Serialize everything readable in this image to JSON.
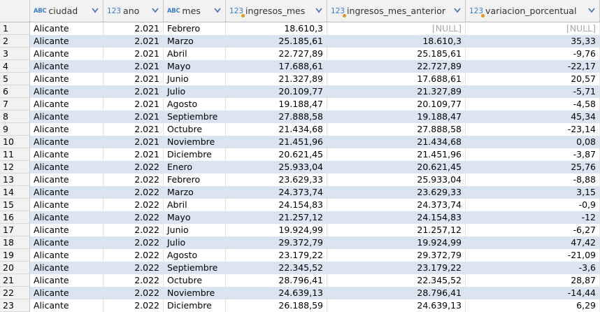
{
  "columns": [
    {
      "name": "ciudad",
      "type": "ABC"
    },
    {
      "name": "ano",
      "type": "123"
    },
    {
      "name": "mes",
      "type": "ABC"
    },
    {
      "name": "ingresos_mes",
      "type": "123"
    },
    {
      "name": "ingresos_mes_anterior",
      "type": "123"
    },
    {
      "name": "variacion_porcentual",
      "type": "123"
    }
  ],
  "rows": [
    {
      "n": "1",
      "ciudad": "Alicante",
      "ano": "2.021",
      "mes": "Febrero",
      "ingresos": "18.610,3",
      "anterior": "[NULL]",
      "variacion": "[NULL]"
    },
    {
      "n": "2",
      "ciudad": "Alicante",
      "ano": "2.021",
      "mes": "Marzo",
      "ingresos": "25.185,61",
      "anterior": "18.610,3",
      "variacion": "35,33"
    },
    {
      "n": "3",
      "ciudad": "Alicante",
      "ano": "2.021",
      "mes": "Abril",
      "ingresos": "22.727,89",
      "anterior": "25.185,61",
      "variacion": "-9,76"
    },
    {
      "n": "4",
      "ciudad": "Alicante",
      "ano": "2.021",
      "mes": "Mayo",
      "ingresos": "17.688,61",
      "anterior": "22.727,89",
      "variacion": "-22,17"
    },
    {
      "n": "5",
      "ciudad": "Alicante",
      "ano": "2.021",
      "mes": "Junio",
      "ingresos": "21.327,89",
      "anterior": "17.688,61",
      "variacion": "20,57"
    },
    {
      "n": "6",
      "ciudad": "Alicante",
      "ano": "2.021",
      "mes": "Julio",
      "ingresos": "20.109,77",
      "anterior": "21.327,89",
      "variacion": "-5,71"
    },
    {
      "n": "7",
      "ciudad": "Alicante",
      "ano": "2.021",
      "mes": "Agosto",
      "ingresos": "19.188,47",
      "anterior": "20.109,77",
      "variacion": "-4,58"
    },
    {
      "n": "8",
      "ciudad": "Alicante",
      "ano": "2.021",
      "mes": "Septiembre",
      "ingresos": "27.888,58",
      "anterior": "19.188,47",
      "variacion": "45,34"
    },
    {
      "n": "9",
      "ciudad": "Alicante",
      "ano": "2.021",
      "mes": "Octubre",
      "ingresos": "21.434,68",
      "anterior": "27.888,58",
      "variacion": "-23,14"
    },
    {
      "n": "10",
      "ciudad": "Alicante",
      "ano": "2.021",
      "mes": "Noviembre",
      "ingresos": "21.451,96",
      "anterior": "21.434,68",
      "variacion": "0,08"
    },
    {
      "n": "11",
      "ciudad": "Alicante",
      "ano": "2.021",
      "mes": "Diciembre",
      "ingresos": "20.621,45",
      "anterior": "21.451,96",
      "variacion": "-3,87"
    },
    {
      "n": "12",
      "ciudad": "Alicante",
      "ano": "2.022",
      "mes": "Enero",
      "ingresos": "25.933,04",
      "anterior": "20.621,45",
      "variacion": "25,76"
    },
    {
      "n": "13",
      "ciudad": "Alicante",
      "ano": "2.022",
      "mes": "Febrero",
      "ingresos": "23.629,33",
      "anterior": "25.933,04",
      "variacion": "-8,88"
    },
    {
      "n": "14",
      "ciudad": "Alicante",
      "ano": "2.022",
      "mes": "Marzo",
      "ingresos": "24.373,74",
      "anterior": "23.629,33",
      "variacion": "3,15"
    },
    {
      "n": "15",
      "ciudad": "Alicante",
      "ano": "2.022",
      "mes": "Abril",
      "ingresos": "24.154,83",
      "anterior": "24.373,74",
      "variacion": "-0,9"
    },
    {
      "n": "16",
      "ciudad": "Alicante",
      "ano": "2.022",
      "mes": "Mayo",
      "ingresos": "21.257,12",
      "anterior": "24.154,83",
      "variacion": "-12"
    },
    {
      "n": "17",
      "ciudad": "Alicante",
      "ano": "2.022",
      "mes": "Junio",
      "ingresos": "19.924,99",
      "anterior": "21.257,12",
      "variacion": "-6,27"
    },
    {
      "n": "18",
      "ciudad": "Alicante",
      "ano": "2.022",
      "mes": "Julio",
      "ingresos": "29.372,79",
      "anterior": "19.924,99",
      "variacion": "47,42"
    },
    {
      "n": "19",
      "ciudad": "Alicante",
      "ano": "2.022",
      "mes": "Agosto",
      "ingresos": "23.179,22",
      "anterior": "29.372,79",
      "variacion": "-21,09"
    },
    {
      "n": "20",
      "ciudad": "Alicante",
      "ano": "2.022",
      "mes": "Septiembre",
      "ingresos": "22.345,52",
      "anterior": "23.179,22",
      "variacion": "-3,6"
    },
    {
      "n": "21",
      "ciudad": "Alicante",
      "ano": "2.022",
      "mes": "Octubre",
      "ingresos": "28.796,41",
      "anterior": "22.345,52",
      "variacion": "28,87"
    },
    {
      "n": "22",
      "ciudad": "Alicante",
      "ano": "2.022",
      "mes": "Noviembre",
      "ingresos": "24.639,13",
      "anterior": "28.796,41",
      "variacion": "-14,44"
    },
    {
      "n": "23",
      "ciudad": "Alicante",
      "ano": "2.022",
      "mes": "Diciembre",
      "ingresos": "26.188,59",
      "anterior": "24.639,13",
      "variacion": "6,29"
    }
  ],
  "colors": {
    "header_bg": "#f2f2f2",
    "alt_row_bg": "#dbe5f1",
    "type_icon": "#3a7cc9",
    "type_dot": "#e8962a",
    "null_text": "#a8a8a8"
  }
}
